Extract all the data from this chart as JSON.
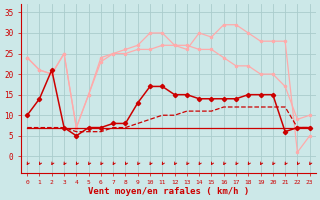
{
  "x": [
    0,
    1,
    2,
    3,
    4,
    5,
    6,
    7,
    8,
    9,
    10,
    11,
    12,
    13,
    14,
    15,
    16,
    17,
    18,
    19,
    20,
    21,
    22,
    23
  ],
  "line1": [
    10,
    14,
    21,
    7,
    5,
    7,
    7,
    8,
    8,
    13,
    17,
    17,
    15,
    15,
    14,
    14,
    14,
    14,
    15,
    15,
    15,
    6,
    7,
    7
  ],
  "line2_flat": [
    7,
    7,
    7,
    7,
    7,
    7,
    7,
    7,
    7,
    7,
    7,
    7,
    7,
    7,
    7,
    7,
    7,
    7,
    7,
    7,
    7,
    7,
    7,
    7
  ],
  "line3_rising": [
    7,
    7,
    7,
    7,
    6,
    6,
    6,
    7,
    7,
    8,
    9,
    10,
    10,
    11,
    11,
    11,
    12,
    12,
    12,
    12,
    12,
    12,
    7,
    7
  ],
  "line4_upper_lower": [
    24,
    21,
    20,
    25,
    7,
    15,
    23,
    25,
    25,
    26,
    26,
    27,
    27,
    27,
    26,
    26,
    24,
    22,
    22,
    20,
    20,
    17,
    9,
    10
  ],
  "line5_upper_upper": [
    24,
    21,
    20,
    25,
    7,
    15,
    24,
    25,
    26,
    27,
    30,
    30,
    27,
    26,
    30,
    29,
    32,
    32,
    30,
    28,
    28,
    28,
    1,
    5
  ],
  "bg_color": "#cce8e8",
  "grid_color": "#aacccc",
  "line1_color": "#cc0000",
  "line_flat_color": "#cc0000",
  "line_rising_color": "#cc0000",
  "line_upper_color": "#ffaaaa",
  "arrow_color": "#cc0000",
  "text_color": "#cc0000",
  "xlabel": "Vent moyen/en rafales ( km/h )",
  "ylim": [
    0,
    36
  ],
  "xlim": [
    0,
    23
  ],
  "yticks": [
    0,
    5,
    10,
    15,
    20,
    25,
    30,
    35
  ],
  "xticks": [
    0,
    1,
    2,
    3,
    4,
    5,
    6,
    7,
    8,
    9,
    10,
    11,
    12,
    13,
    14,
    15,
    16,
    17,
    18,
    19,
    20,
    21,
    22,
    23
  ]
}
